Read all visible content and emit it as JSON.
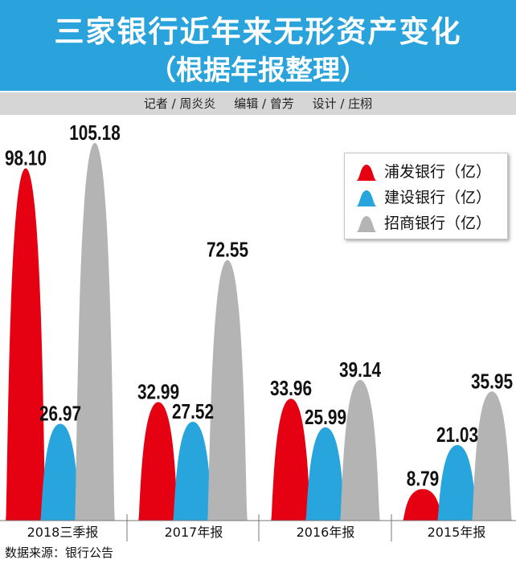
{
  "chart_data": {
    "type": "bar",
    "title": "三家银行近年来无形资产变化",
    "subtitle": "（根据年报整理）",
    "categories": [
      "2018三季报",
      "2017年报",
      "2016年报",
      "2015年报"
    ],
    "series": [
      {
        "name": "浦发银行（亿）",
        "color": "#e50012",
        "values": [
          98.1,
          32.99,
          33.96,
          8.79
        ],
        "data_labels": [
          "98.10",
          "32.99",
          "33.96",
          "8.79"
        ]
      },
      {
        "name": "建设银行（亿）",
        "color": "#29a5de",
        "values": [
          26.97,
          27.52,
          25.99,
          21.03
        ],
        "data_labels": [
          "26.97",
          "27.52",
          "25.99",
          "21.03"
        ]
      },
      {
        "name": "招商银行（亿）",
        "color": "#b4b4b4",
        "values": [
          105.18,
          72.55,
          39.14,
          35.95
        ],
        "data_labels": [
          "105.18",
          "72.55",
          "39.14",
          "35.95"
        ]
      }
    ],
    "legend": "top-right",
    "grid": false
  },
  "credits": [
    "记者 / 周炎炎",
    "编辑 / 曾芳",
    "设计 / 庄栩"
  ],
  "source": "数据来源：银行公告",
  "colors": {
    "header_background": "#2aa3dc",
    "credits_background": "#d6d6d6"
  }
}
